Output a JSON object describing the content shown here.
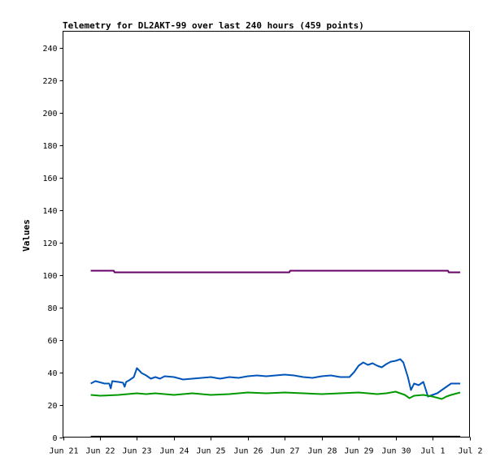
{
  "chart_data": {
    "type": "line",
    "title": "Telemetry for DL2AKT-99 over last 240 hours (459 points)",
    "ylabel": "Values",
    "xlabel": "",
    "xlim": [
      "Jun 21",
      "Jul 2"
    ],
    "ylim": [
      0,
      250
    ],
    "grid": false,
    "x_tick_labels": [
      "Jun 21",
      "Jun 22",
      "Jun 23",
      "Jun 24",
      "Jun 25",
      "Jun 26",
      "Jun 27",
      "Jun 28",
      "Jun 29",
      "Jun 30",
      "Jul 1",
      "Jul 2"
    ],
    "y_ticks": [
      0,
      20,
      40,
      60,
      80,
      100,
      120,
      140,
      160,
      180,
      200,
      220,
      240
    ],
    "series": [
      {
        "color": "#660066",
        "points": [
          [
            "Jun 21 18:00",
            102.5
          ],
          [
            "Jun 22 09:00",
            102.5
          ],
          [
            "Jun 22 09:30",
            101.5
          ],
          [
            "Jun 24 00:00",
            101.5
          ],
          [
            "Jun 26 00:00",
            101.5
          ],
          [
            "Jun 27 03:00",
            101.5
          ],
          [
            "Jun 27 03:30",
            102.5
          ],
          [
            "Jun 28 00:00",
            102.5
          ],
          [
            "Jun 30 00:00",
            102.5
          ],
          [
            "Jul 1 10:00",
            102.5
          ],
          [
            "Jul 1 10:30",
            101.5
          ],
          [
            "Jul 1 18:00",
            101.5
          ]
        ]
      },
      {
        "color": "#0055bb",
        "points": [
          [
            "Jun 21 18:00",
            33
          ],
          [
            "Jun 21 21:00",
            34.5
          ],
          [
            "Jun 22 03:00",
            33
          ],
          [
            "Jun 22 06:00",
            33
          ],
          [
            "Jun 22 07:00",
            30
          ],
          [
            "Jun 22 08:00",
            34.5
          ],
          [
            "Jun 22 12:00",
            34
          ],
          [
            "Jun 22 15:00",
            33.5
          ],
          [
            "Jun 22 16:00",
            31
          ],
          [
            "Jun 22 17:00",
            34
          ],
          [
            "Jun 22 19:00",
            35
          ],
          [
            "Jun 22 22:00",
            37
          ],
          [
            "Jun 23 00:00",
            42.5
          ],
          [
            "Jun 23 03:00",
            39.5
          ],
          [
            "Jun 23 06:00",
            38
          ],
          [
            "Jun 23 09:00",
            36
          ],
          [
            "Jun 23 12:00",
            37
          ],
          [
            "Jun 23 15:00",
            36
          ],
          [
            "Jun 23 18:00",
            37.5
          ],
          [
            "Jun 24 00:00",
            37
          ],
          [
            "Jun 24 06:00",
            35.5
          ],
          [
            "Jun 24 12:00",
            36
          ],
          [
            "Jun 24 18:00",
            36.5
          ],
          [
            "Jun 25 00:00",
            37
          ],
          [
            "Jun 25 06:00",
            36
          ],
          [
            "Jun 25 12:00",
            37
          ],
          [
            "Jun 25 18:00",
            36.5
          ],
          [
            "Jun 26 00:00",
            37.5
          ],
          [
            "Jun 26 06:00",
            38
          ],
          [
            "Jun 26 12:00",
            37.5
          ],
          [
            "Jun 26 18:00",
            38
          ],
          [
            "Jun 27 00:00",
            38.5
          ],
          [
            "Jun 27 06:00",
            38
          ],
          [
            "Jun 27 12:00",
            37
          ],
          [
            "Jun 27 18:00",
            36.5
          ],
          [
            "Jun 28 00:00",
            37.5
          ],
          [
            "Jun 28 06:00",
            38
          ],
          [
            "Jun 28 12:00",
            37
          ],
          [
            "Jun 28 18:00",
            37
          ],
          [
            "Jun 28 21:00",
            40
          ],
          [
            "Jun 29 00:00",
            44
          ],
          [
            "Jun 29 03:00",
            46
          ],
          [
            "Jun 29 06:00",
            44.5
          ],
          [
            "Jun 29 09:00",
            45.5
          ],
          [
            "Jun 29 12:00",
            44
          ],
          [
            "Jun 29 15:00",
            43
          ],
          [
            "Jun 29 18:00",
            45
          ],
          [
            "Jun 29 21:00",
            46.5
          ],
          [
            "Jun 30 00:00",
            47
          ],
          [
            "Jun 30 03:00",
            48
          ],
          [
            "Jun 30 05:00",
            46
          ],
          [
            "Jun 30 08:00",
            37
          ],
          [
            "Jun 30 10:00",
            29
          ],
          [
            "Jun 30 12:00",
            33
          ],
          [
            "Jun 30 15:00",
            32
          ],
          [
            "Jun 30 18:00",
            34
          ],
          [
            "Jun 30 21:00",
            25
          ],
          [
            "Jul 1 00:00",
            26
          ],
          [
            "Jul 1 03:00",
            27
          ],
          [
            "Jul 1 06:00",
            29
          ],
          [
            "Jul 1 09:00",
            31
          ],
          [
            "Jul 1 12:00",
            33
          ],
          [
            "Jul 1 18:00",
            33
          ]
        ]
      },
      {
        "color": "#009900",
        "points": [
          [
            "Jun 21 18:00",
            26
          ],
          [
            "Jun 22 00:00",
            25.5
          ],
          [
            "Jun 22 12:00",
            26
          ],
          [
            "Jun 22 18:00",
            26.5
          ],
          [
            "Jun 23 00:00",
            27
          ],
          [
            "Jun 23 06:00",
            26.5
          ],
          [
            "Jun 23 12:00",
            27
          ],
          [
            "Jun 23 18:00",
            26.5
          ],
          [
            "Jun 24 00:00",
            26
          ],
          [
            "Jun 24 06:00",
            26.5
          ],
          [
            "Jun 24 12:00",
            27
          ],
          [
            "Jun 25 00:00",
            26
          ],
          [
            "Jun 25 12:00",
            26.5
          ],
          [
            "Jun 26 00:00",
            27.5
          ],
          [
            "Jun 26 12:00",
            27
          ],
          [
            "Jun 27 00:00",
            27.5
          ],
          [
            "Jun 27 12:00",
            27
          ],
          [
            "Jun 28 00:00",
            26.5
          ],
          [
            "Jun 28 12:00",
            27
          ],
          [
            "Jun 29 00:00",
            27.5
          ],
          [
            "Jun 29 12:00",
            26.5
          ],
          [
            "Jun 29 18:00",
            27
          ],
          [
            "Jun 30 00:00",
            28
          ],
          [
            "Jun 30 06:00",
            26
          ],
          [
            "Jun 30 09:00",
            24
          ],
          [
            "Jun 30 12:00",
            25.5
          ],
          [
            "Jun 30 18:00",
            26
          ],
          [
            "Jul 1 00:00",
            25
          ],
          [
            "Jul 1 06:00",
            23.5
          ],
          [
            "Jul 1 09:00",
            25
          ],
          [
            "Jul 1 12:00",
            26
          ],
          [
            "Jul 1 18:00",
            27.5
          ]
        ]
      },
      {
        "color": "#000000",
        "points": [
          [
            "Jun 21 18:00",
            0.3
          ],
          [
            "Jul 1 18:00",
            0.3
          ]
        ]
      }
    ]
  }
}
